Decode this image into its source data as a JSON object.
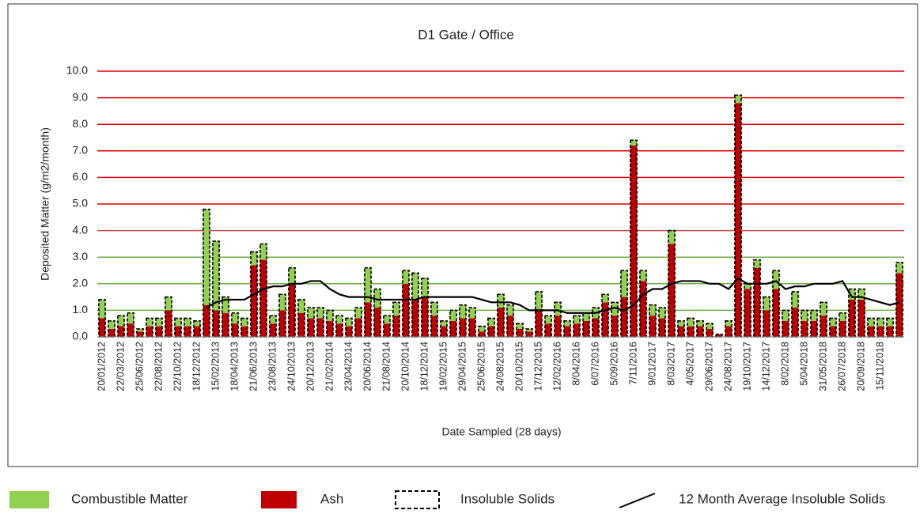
{
  "chart_data": {
    "type": "bar",
    "title": "D1 Gate / Office",
    "x_label": "Date Sampled (28 days)",
    "y_label": "Deposited Matter (g/m2/month)",
    "categories": [
      "20/01/2012",
      null,
      "22/03/2012",
      null,
      "25/06/2012",
      null,
      "22/08/2012",
      null,
      "22/10/2012",
      null,
      "18/12/2012",
      null,
      "15/02/2013",
      null,
      "18/04/2013",
      null,
      "21/06/2013",
      null,
      "23/08/2013",
      null,
      "24/10/2013",
      null,
      "20/12/2013",
      null,
      "21/02/2014",
      null,
      "23/04/2014",
      null,
      "20/06/2014",
      null,
      "21/08/2014",
      null,
      "20/10/2014",
      null,
      "18/12/2014",
      null,
      "19/02/2015",
      null,
      "29/04/2015",
      null,
      "25/06/2015",
      null,
      "24/08/2015",
      null,
      "20/10/2015",
      null,
      "17/12/2015",
      null,
      "12/02/2016",
      null,
      "8/04/2016",
      null,
      "6/07/2016",
      null,
      "5/09/2016",
      null,
      "7/11/2016",
      null,
      "9/01/2017",
      null,
      "8/03/2017",
      null,
      "4/05/2017",
      null,
      "29/06/2017",
      null,
      "24/08/2017",
      null,
      "19/10/2017",
      null,
      "14/12/2017",
      null,
      "8/02/2018",
      null,
      "5/04/2018",
      null,
      "31/05/2018",
      null,
      "26/07/2018",
      null,
      "20/09/2018",
      null,
      "15/11/2018",
      null,
      null
    ],
    "series": [
      {
        "name": "Ash",
        "type": "bar",
        "color": "#c00000",
        "values": [
          0.7,
          0.3,
          0.4,
          0.5,
          0.2,
          0.4,
          0.4,
          1.0,
          0.4,
          0.4,
          0.4,
          1.2,
          1.0,
          0.9,
          0.5,
          0.4,
          2.7,
          2.9,
          0.5,
          1.0,
          2.0,
          0.9,
          0.7,
          0.7,
          0.6,
          0.5,
          0.4,
          0.7,
          1.3,
          1.1,
          0.5,
          0.8,
          2.0,
          1.4,
          1.5,
          0.8,
          0.4,
          0.6,
          0.7,
          0.7,
          0.2,
          0.4,
          1.1,
          0.8,
          0.3,
          0.2,
          1.0,
          0.5,
          0.8,
          0.4,
          0.5,
          0.6,
          0.7,
          1.3,
          0.8,
          1.5,
          7.2,
          2.1,
          0.8,
          0.7,
          3.5,
          0.4,
          0.4,
          0.4,
          0.3,
          0.1,
          0.4,
          8.8,
          1.8,
          2.6,
          1.0,
          1.8,
          0.6,
          1.1,
          0.6,
          0.6,
          0.8,
          0.4,
          0.6,
          1.4,
          1.4,
          0.4,
          0.4,
          0.4,
          2.4
        ]
      },
      {
        "name": "Combustible Matter",
        "type": "bar",
        "color": "#92d050",
        "values": [
          0.7,
          0.3,
          0.4,
          0.4,
          0.1,
          0.3,
          0.3,
          0.5,
          0.3,
          0.3,
          0.2,
          3.6,
          2.6,
          0.6,
          0.4,
          0.3,
          0.5,
          0.6,
          0.3,
          0.6,
          0.6,
          0.5,
          0.4,
          0.4,
          0.4,
          0.3,
          0.3,
          0.4,
          1.3,
          0.7,
          0.3,
          0.5,
          0.5,
          1.0,
          0.7,
          0.5,
          0.2,
          0.4,
          0.5,
          0.4,
          0.2,
          0.3,
          0.5,
          0.4,
          0.2,
          0.1,
          0.7,
          0.3,
          0.5,
          0.2,
          0.3,
          0.3,
          0.4,
          0.3,
          0.5,
          1.0,
          0.2,
          0.4,
          0.4,
          0.4,
          0.5,
          0.2,
          0.3,
          0.2,
          0.2,
          0.0,
          0.2,
          0.3,
          0.2,
          0.3,
          0.5,
          0.7,
          0.4,
          0.6,
          0.4,
          0.4,
          0.5,
          0.3,
          0.3,
          0.4,
          0.4,
          0.3,
          0.3,
          0.3,
          0.4
        ]
      },
      {
        "name": "Insoluble Solids",
        "type": "outline",
        "color": "#000000",
        "values": [
          1.4,
          0.6,
          0.8,
          0.9,
          0.3,
          0.7,
          0.7,
          1.5,
          0.7,
          0.7,
          0.6,
          4.8,
          3.6,
          1.5,
          0.9,
          0.7,
          3.2,
          3.5,
          0.8,
          1.6,
          2.6,
          1.4,
          1.1,
          1.1,
          1.0,
          0.8,
          0.7,
          1.1,
          2.6,
          1.8,
          0.8,
          1.3,
          2.5,
          2.4,
          2.2,
          1.3,
          0.6,
          1.0,
          1.2,
          1.1,
          0.4,
          0.7,
          1.6,
          1.2,
          0.5,
          0.3,
          1.7,
          0.8,
          1.3,
          0.6,
          0.8,
          0.9,
          1.1,
          1.6,
          1.3,
          2.5,
          7.4,
          2.5,
          1.2,
          1.1,
          4.0,
          0.6,
          0.7,
          0.6,
          0.5,
          0.1,
          0.6,
          9.1,
          2.0,
          2.9,
          1.5,
          2.5,
          1.0,
          1.7,
          1.0,
          1.0,
          1.3,
          0.7,
          0.9,
          1.8,
          1.8,
          0.7,
          0.7,
          0.7,
          2.8
        ]
      },
      {
        "name": "12 Month Average Insoluble Solids",
        "type": "line",
        "color": "#000000",
        "values": [
          null,
          null,
          null,
          null,
          null,
          null,
          null,
          null,
          null,
          null,
          null,
          1.1,
          1.3,
          1.4,
          1.4,
          1.4,
          1.6,
          1.8,
          1.9,
          1.9,
          2.0,
          2.0,
          2.1,
          2.1,
          1.8,
          1.6,
          1.5,
          1.5,
          1.5,
          1.4,
          1.4,
          1.4,
          1.4,
          1.4,
          1.5,
          1.5,
          1.5,
          1.5,
          1.5,
          1.5,
          1.4,
          1.3,
          1.3,
          1.3,
          1.2,
          1.0,
          1.0,
          1.0,
          1.0,
          0.9,
          0.9,
          0.9,
          0.9,
          1.0,
          1.1,
          1.0,
          1.2,
          1.6,
          1.8,
          1.8,
          2.0,
          2.1,
          2.1,
          2.1,
          2.0,
          2.0,
          1.8,
          2.2,
          2.0,
          2.0,
          2.0,
          2.1,
          1.8,
          1.9,
          1.9,
          2.0,
          2.0,
          2.0,
          2.1,
          1.5,
          1.5,
          1.4,
          1.3,
          1.2,
          1.3
        ]
      }
    ],
    "ylim": [
      0,
      10
    ],
    "yticks": [
      {
        "value": 0,
        "label": "0.0"
      },
      {
        "value": 1,
        "label": "1.0"
      },
      {
        "value": 2,
        "label": "2.0"
      },
      {
        "value": 3,
        "label": "3.0"
      },
      {
        "value": 4,
        "label": "4.0"
      },
      {
        "value": 5,
        "label": "5.0"
      },
      {
        "value": 6,
        "label": "6.0"
      },
      {
        "value": 7,
        "label": "7.0"
      },
      {
        "value": 8,
        "label": "8.0"
      },
      {
        "value": 9,
        "label": "9.0"
      },
      {
        "value": 10,
        "label": "10.0"
      }
    ],
    "grid": true,
    "grid_colors": [
      "#bfbfbf",
      "#70ad47",
      "#70ad47",
      "#70ad47",
      "#c0504d",
      "#e00000",
      "#e00000",
      "#e00000",
      "#e00000",
      "#e00000",
      "#e00000"
    ],
    "legend": "bottom"
  }
}
